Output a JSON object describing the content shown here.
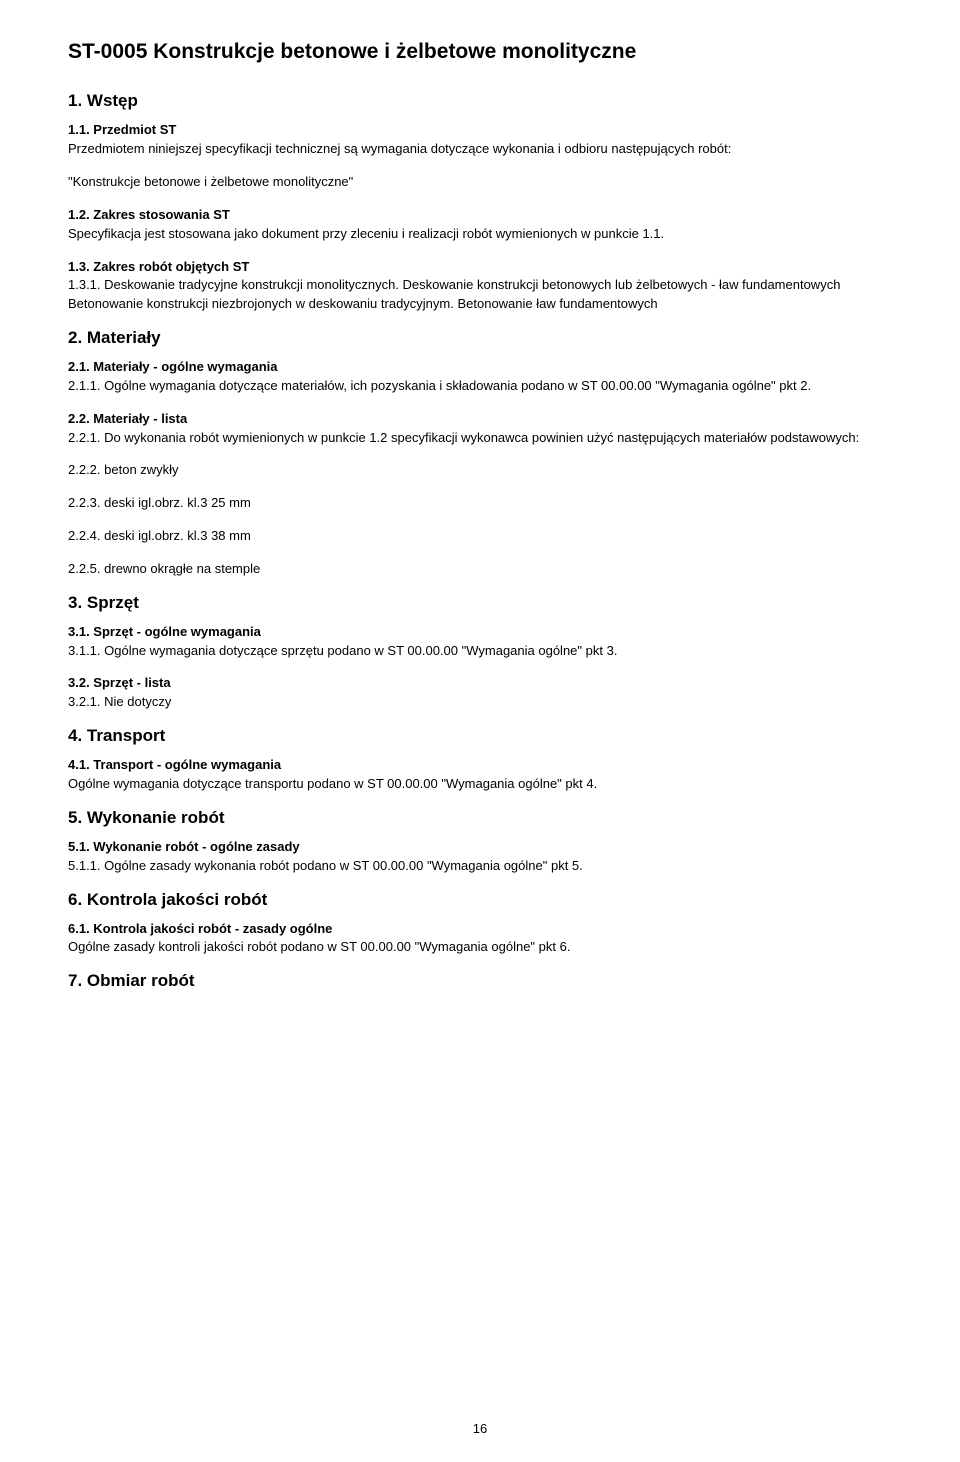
{
  "doc": {
    "title": "ST-0005  Konstrukcje betonowe i żelbetowe monolityczne",
    "page_number": "16"
  },
  "s1": {
    "heading": "1. Wstęp",
    "s11_title": "1.1. Przedmiot ST",
    "s11_body": "Przedmiotem niniejszej specyfikacji technicznej są wymagania dotyczące wykonania i odbioru następujących robót:",
    "s11_quote": "\"Konstrukcje betonowe i żelbetowe monolityczne\"",
    "s12_title": "1.2. Zakres stosowania ST",
    "s12_body": "Specyfikacja jest stosowana jako dokument przy zleceniu i realizacji robót wymienionych w punkcie 1.1.",
    "s13_title": "1.3. Zakres robót objętych ST",
    "s13_body": "1.3.1. Deskowanie tradycyjne konstrukcji monolitycznych. Deskowanie konstrukcji betonowych lub żelbetowych - ław fundamentowych\nBetonowanie konstrukcji niezbrojonych w deskowaniu tradycyjnym. Betonowanie ław fundamentowych"
  },
  "s2": {
    "heading": "2. Materiały",
    "s21_title": "2.1. Materiały - ogólne wymagania",
    "s21_body": "2.1.1. Ogólne wymagania dotyczące materiałów, ich pozyskania i składowania podano w ST 00.00.00 \"Wymagania ogólne\" pkt 2.",
    "s22_title": "2.2. Materiały - lista",
    "s22_body": "2.2.1. Do wykonania robót wymienionych w punkcie 1.2 specyfikacji wykonawca powinien użyć następujących materiałów podstawowych:",
    "items": {
      "i1": "2.2.2. beton zwykły",
      "i2": "2.2.3. deski igl.obrz. kl.3 25 mm",
      "i3": "2.2.4. deski igl.obrz. kl.3 38 mm",
      "i4": "2.2.5. drewno okrągłe na stemple"
    }
  },
  "s3": {
    "heading": "3. Sprzęt",
    "s31_title": "3.1. Sprzęt - ogólne wymagania",
    "s31_body": "3.1.1. Ogólne wymagania dotyczące sprzętu podano w ST 00.00.00 \"Wymagania ogólne\" pkt 3.",
    "s32_title": "3.2. Sprzęt - lista",
    "s32_body": "3.2.1. Nie dotyczy"
  },
  "s4": {
    "heading": "4. Transport",
    "s41_title": "4.1. Transport - ogólne wymagania",
    "s41_body": "Ogólne wymagania dotyczące transportu podano w ST 00.00.00 \"Wymagania ogólne\" pkt 4."
  },
  "s5": {
    "heading": "5. Wykonanie robót",
    "s51_title": "5.1. Wykonanie robót - ogólne zasady",
    "s51_body": "5.1.1. Ogólne zasady wykonania robót podano w ST 00.00.00 \"Wymagania ogólne\" pkt 5."
  },
  "s6": {
    "heading": "6. Kontrola jakości robót",
    "s61_title": "6.1. Kontrola jakości robót - zasady ogólne",
    "s61_body": "Ogólne zasady kontroli jakości robót podano w ST 00.00.00 \"Wymagania ogólne\" pkt 6."
  },
  "s7": {
    "heading": "7. Obmiar robót"
  }
}
